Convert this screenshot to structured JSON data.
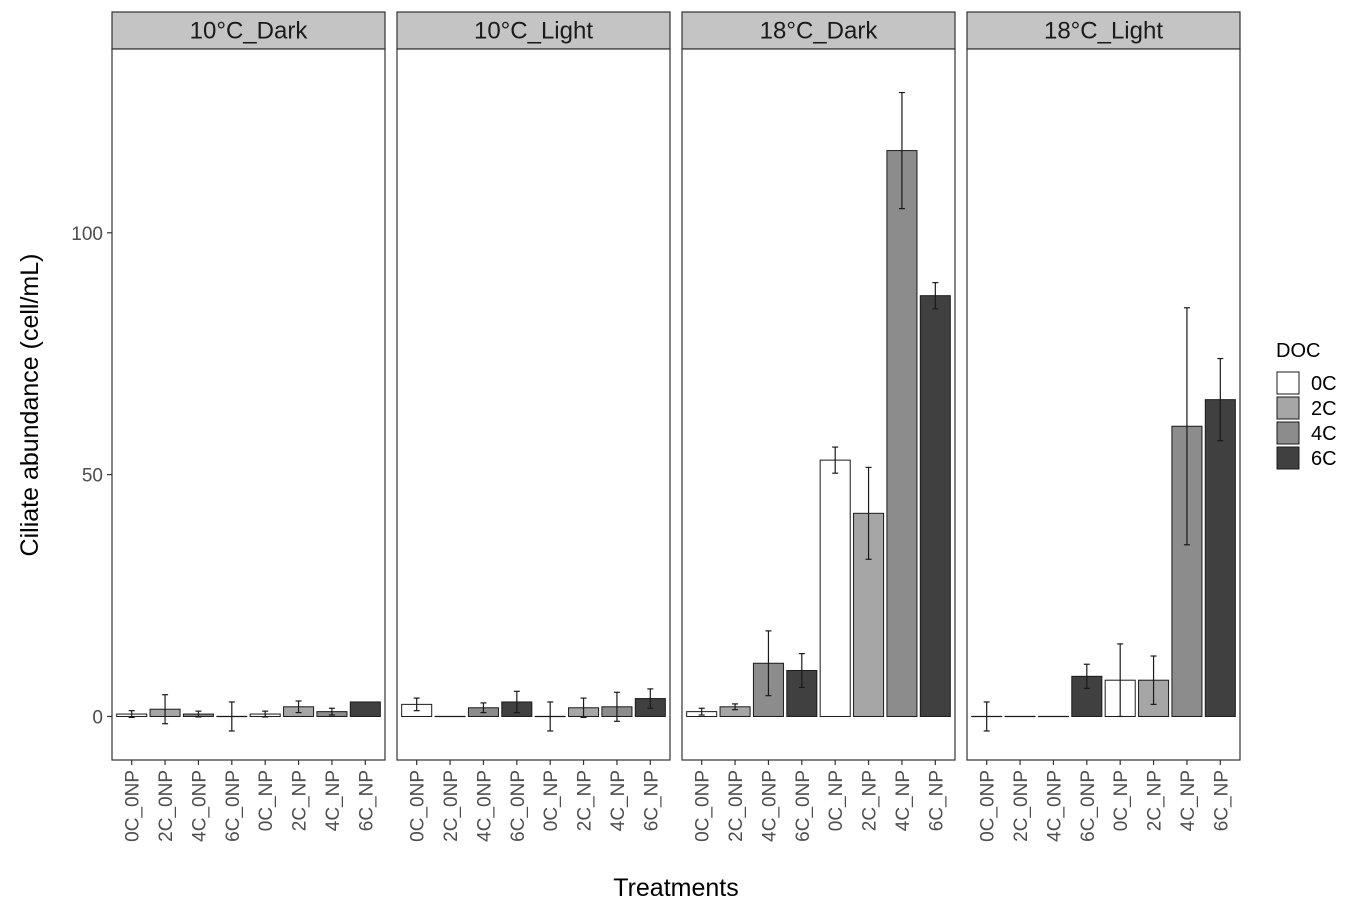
{
  "chart_data": {
    "type": "bar",
    "facet_type": "grid-of-bar-panels",
    "ylabel": "Ciliate abundance (cell/mL)",
    "xlabel": "Treatments",
    "ylim": [
      -9,
      138
    ],
    "y_ticks": [
      0,
      50,
      100
    ],
    "grid": false,
    "categories": [
      "0C_0NP",
      "2C_0NP",
      "4C_0NP",
      "6C_0NP",
      "0C_NP",
      "2C_NP",
      "4C_NP",
      "6C_NP"
    ],
    "category_doc": [
      "0C",
      "2C",
      "4C",
      "6C",
      "0C",
      "2C",
      "4C",
      "6C"
    ],
    "legend": {
      "title": "DOC",
      "position": "right",
      "items": [
        {
          "label": "0C",
          "color": "#ffffff"
        },
        {
          "label": "2C",
          "color": "#a6a6a6"
        },
        {
          "label": "4C",
          "color": "#8c8c8c"
        },
        {
          "label": "6C",
          "color": "#404040"
        }
      ]
    },
    "panels": [
      {
        "title": "10°C_Dark",
        "values": [
          0.5,
          1.5,
          0.5,
          0,
          0.5,
          2,
          1,
          3
        ],
        "errors": [
          0.7,
          3,
          0.6,
          3,
          0.6,
          1.2,
          0.7,
          0
        ]
      },
      {
        "title": "10°C_Light",
        "values": [
          2.5,
          0,
          1.8,
          3,
          0,
          1.8,
          2,
          3.7
        ],
        "errors": [
          1.3,
          0,
          1,
          2.2,
          3,
          2,
          3,
          2
        ]
      },
      {
        "title": "18°C_Dark",
        "values": [
          1,
          2,
          11,
          9.5,
          53,
          42,
          117,
          87
        ],
        "errors": [
          0.7,
          0.6,
          6.7,
          3.5,
          2.7,
          9.5,
          12,
          2.7
        ]
      },
      {
        "title": "18°C_Light",
        "values": [
          0,
          0,
          0,
          8.3,
          7.5,
          7.5,
          60,
          65.5
        ],
        "errors": [
          3,
          0,
          0,
          2.5,
          7.5,
          5,
          24.5,
          8.5
        ]
      }
    ]
  }
}
